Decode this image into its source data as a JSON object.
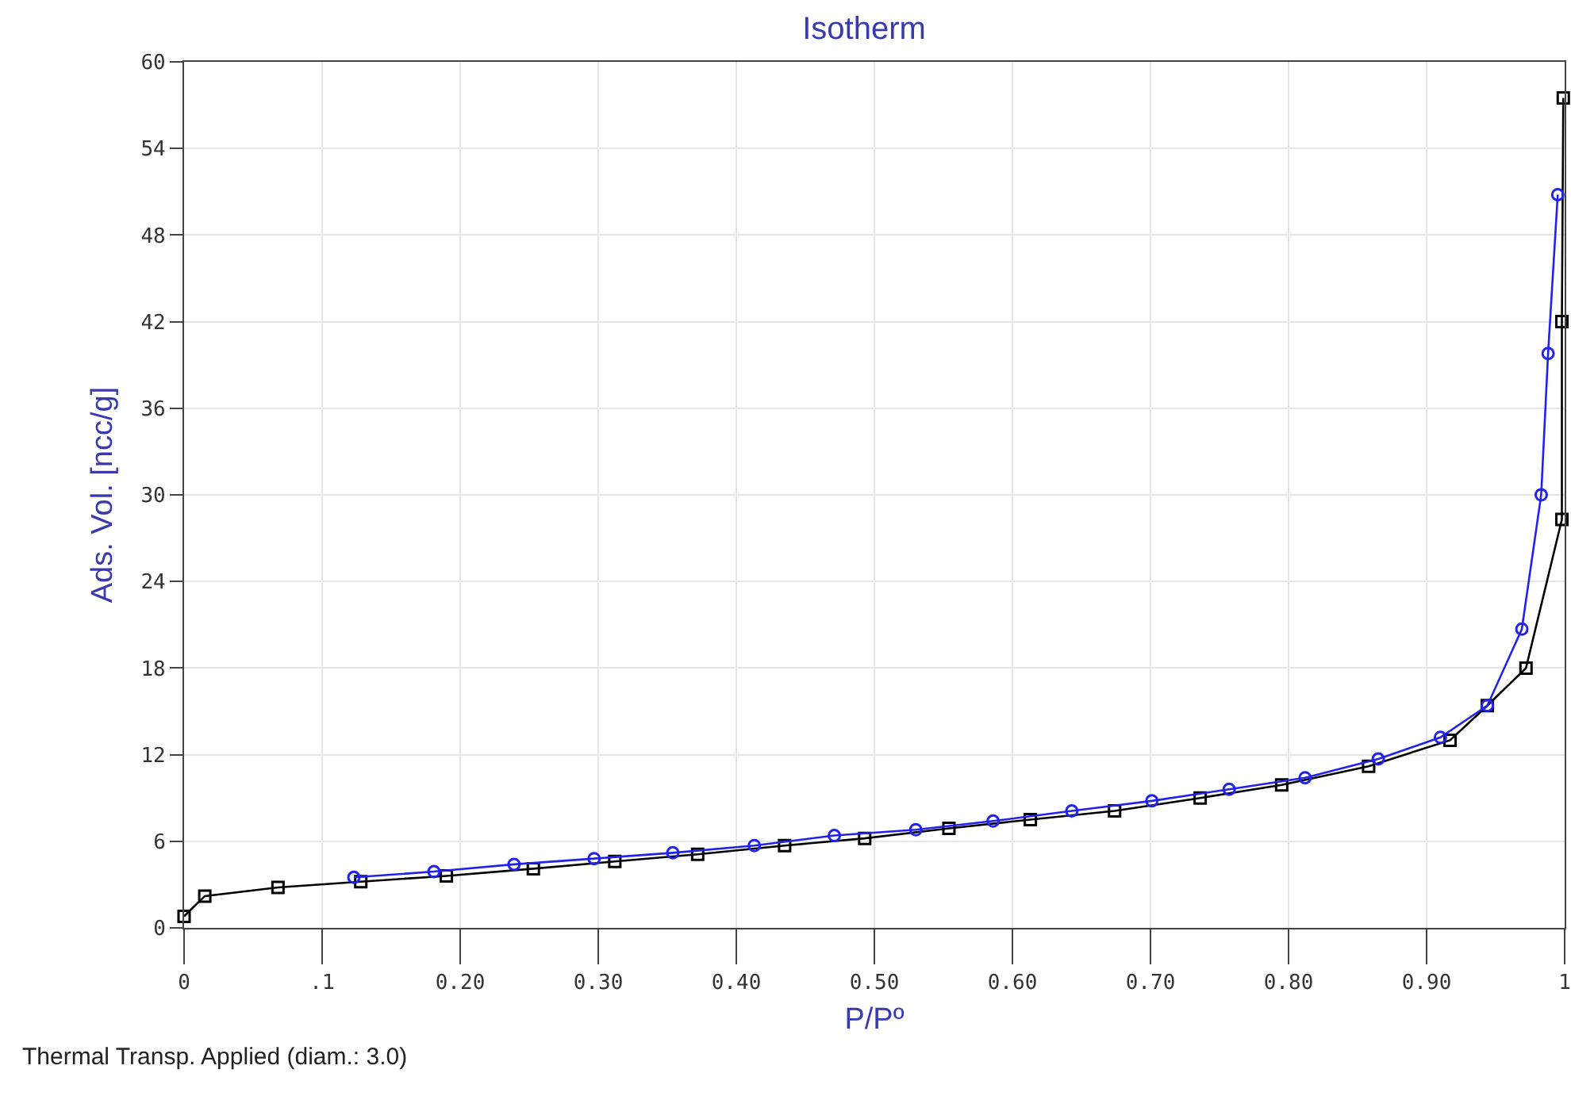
{
  "chart_data": {
    "type": "line",
    "title": "Isotherm",
    "xlabel": "P/Pº",
    "ylabel": "Ads. Vol. [ncc/g]",
    "annotations": [
      "Thermal Transp. Applied (diam.: 3.0)"
    ],
    "series": [
      {
        "color": "#000000",
        "marker": "square",
        "x": [
          0,
          0.015,
          0.068,
          0.128,
          0.19,
          0.253,
          0.312,
          0.372,
          0.435,
          0.493,
          0.554,
          0.613,
          0.674,
          0.736,
          0.795,
          0.858,
          0.917,
          0.944,
          0.972,
          0.998,
          0.998,
          0.999
        ],
        "values": [
          0.8,
          2.2,
          2.8,
          3.2,
          3.6,
          4.1,
          4.6,
          5.1,
          5.7,
          6.2,
          6.9,
          7.5,
          8.1,
          9.0,
          9.9,
          11.2,
          13.0,
          15.4,
          18.0,
          28.3,
          42.0,
          57.5
        ]
      },
      {
        "color": "#2222ee",
        "marker": "circle",
        "x": [
          0.995,
          0.988,
          0.983,
          0.969,
          0.944,
          0.91,
          0.865,
          0.812,
          0.757,
          0.701,
          0.643,
          0.586,
          0.53,
          0.471,
          0.413,
          0.354,
          0.297,
          0.239,
          0.181,
          0.123
        ],
        "values": [
          50.8,
          39.8,
          30.0,
          20.7,
          15.4,
          13.2,
          11.7,
          10.4,
          9.6,
          8.8,
          8.1,
          7.4,
          6.8,
          6.4,
          5.7,
          5.2,
          4.8,
          4.4,
          3.9,
          3.5
        ]
      }
    ],
    "xlim": [
      0,
      1
    ],
    "xticks": [
      0,
      {
        "value": 0.1,
        "label": ".1"
      },
      {
        "value": 0.2,
        "label": "0.20"
      },
      {
        "value": 0.3,
        "label": "0.30"
      },
      {
        "value": 0.4,
        "label": "0.40"
      },
      {
        "value": 0.5,
        "label": "0.50"
      },
      {
        "value": 0.6,
        "label": "0.60"
      },
      {
        "value": 0.7,
        "label": "0.70"
      },
      {
        "value": 0.8,
        "label": "0.80"
      },
      {
        "value": 0.9,
        "label": "0.90"
      },
      1
    ],
    "ylim": [
      0,
      60
    ],
    "yticks": [
      0,
      6,
      12,
      18,
      24,
      30,
      36,
      42,
      48,
      54,
      60
    ],
    "grid": true,
    "line_style": "solid"
  }
}
